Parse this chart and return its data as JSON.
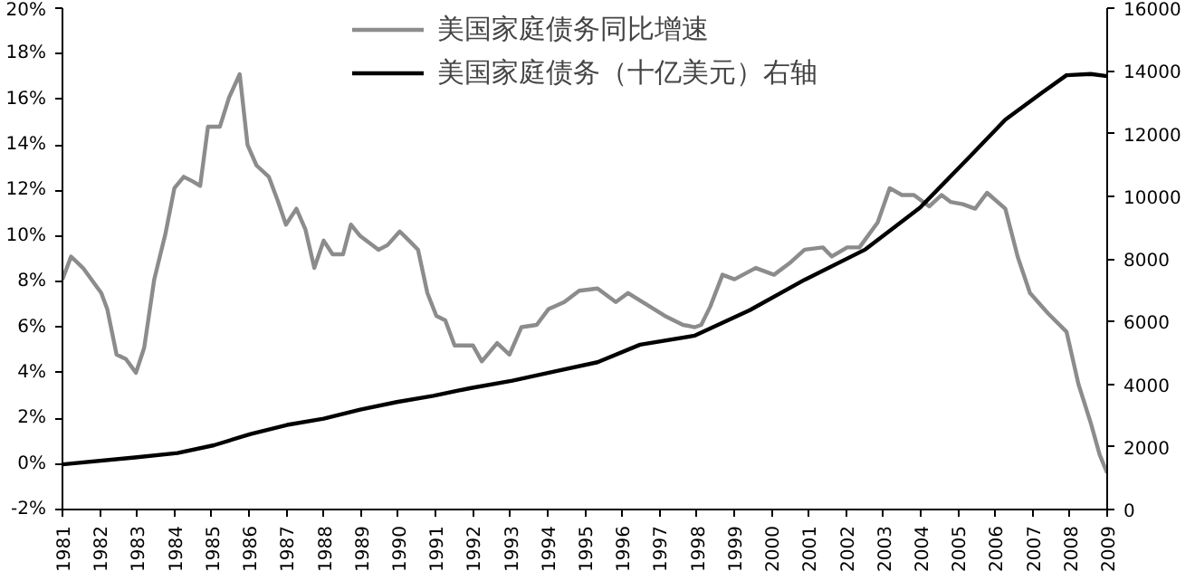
{
  "chart_data": {
    "type": "line",
    "series": [
      {
        "name": "美国家庭债务同比增速",
        "color": "#8c8c8c",
        "x": [
          1981.0,
          1981.23,
          1981.55,
          1982.04,
          1982.2,
          1982.45,
          1982.7,
          1982.97,
          1983.19,
          1983.46,
          1983.76,
          1984.0,
          1984.25,
          1984.49,
          1984.69,
          1984.9,
          1985.22,
          1985.47,
          1985.75,
          1985.96,
          1986.2,
          1986.53,
          1986.78,
          1986.99,
          1987.27,
          1987.51,
          1987.75,
          1988.0,
          1988.24,
          1988.52,
          1988.73,
          1988.98,
          1989.47,
          1989.71,
          1990.04,
          1990.29,
          1990.53,
          1990.78,
          1991.02,
          1991.26,
          1991.51,
          1992.0,
          1992.24,
          1992.65,
          1992.98,
          1993.3,
          1993.71,
          1994.03,
          1994.45,
          1994.85,
          1995.34,
          1995.83,
          1996.16,
          1996.65,
          1997.14,
          1997.63,
          1997.95,
          1998.12,
          1998.36,
          1998.69,
          1999.01,
          1999.58,
          2000.07,
          2000.48,
          2000.89,
          2001.38,
          2001.62,
          2002.03,
          2002.36,
          2002.85,
          2003.17,
          2003.5,
          2003.82,
          2004.23,
          2004.56,
          2004.8,
          2005.13,
          2005.46,
          2005.78,
          2006.27,
          2006.6,
          2006.93,
          2007.42,
          2007.91,
          2008.23,
          2008.56,
          2008.8,
          2009.0
        ],
        "values": [
          8.1,
          9.1,
          8.6,
          7.5,
          6.8,
          4.8,
          4.6,
          4.0,
          5.1,
          8.1,
          10.1,
          12.1,
          12.6,
          12.4,
          12.2,
          14.8,
          14.8,
          16.1,
          17.1,
          14.0,
          13.1,
          12.6,
          11.5,
          10.5,
          11.2,
          10.3,
          8.6,
          9.8,
          9.2,
          9.2,
          10.5,
          10.0,
          9.4,
          9.6,
          10.2,
          9.8,
          9.4,
          7.5,
          6.5,
          6.3,
          5.2,
          5.2,
          4.5,
          5.3,
          4.8,
          6.0,
          6.1,
          6.8,
          7.1,
          7.6,
          7.7,
          7.1,
          7.5,
          7.0,
          6.5,
          6.1,
          6.0,
          6.1,
          6.9,
          8.3,
          8.1,
          8.6,
          8.3,
          8.8,
          9.4,
          9.5,
          9.1,
          9.5,
          9.5,
          10.6,
          12.1,
          11.8,
          11.8,
          11.3,
          11.8,
          11.5,
          11.4,
          11.2,
          11.9,
          11.2,
          9.1,
          7.5,
          6.6,
          5.8,
          3.5,
          1.8,
          0.4,
          -0.4
        ]
      },
      {
        "name": "美国家庭债务（十亿美元）右轴",
        "color": "#000000",
        "axis": "y2",
        "x": [
          1981.0,
          1982.94,
          1984.08,
          1985.06,
          1986.04,
          1987.02,
          1988.0,
          1988.98,
          1989.96,
          1990.94,
          1991.92,
          1993.06,
          1994.2,
          1995.34,
          1996.48,
          1997.95,
          1999.42,
          2000.89,
          2002.52,
          2003.99,
          2005.29,
          2006.27,
          2007.25,
          2007.91,
          2008.56,
          2009.0
        ],
        "values": [
          1440,
          1660,
          1800,
          2050,
          2410,
          2700,
          2900,
          3190,
          3430,
          3630,
          3870,
          4110,
          4410,
          4700,
          5260,
          5550,
          6360,
          7330,
          8300,
          9640,
          11230,
          12440,
          13300,
          13860,
          13900,
          13830
        ]
      }
    ],
    "xlim": [
      1981,
      2009
    ],
    "xticks": [
      1981,
      1982,
      1983,
      1984,
      1985,
      1986,
      1987,
      1988,
      1989,
      1990,
      1991,
      1992,
      1993,
      1994,
      1995,
      1996,
      1997,
      1998,
      1999,
      2000,
      2001,
      2002,
      2003,
      2004,
      2005,
      2006,
      2007,
      2008,
      2009
    ],
    "ylim": [
      -2,
      20
    ],
    "yticks": [
      {
        "value": -2,
        "label": "-2%"
      },
      {
        "value": 0,
        "label": "0%"
      },
      {
        "value": 2,
        "label": "2%"
      },
      {
        "value": 4,
        "label": "4%"
      },
      {
        "value": 6,
        "label": "6%"
      },
      {
        "value": 8,
        "label": "8%"
      },
      {
        "value": 10,
        "label": "10%"
      },
      {
        "value": 12,
        "label": "12%"
      },
      {
        "value": 14,
        "label": "14%"
      },
      {
        "value": 16,
        "label": "16%"
      },
      {
        "value": 18,
        "label": "18%"
      },
      {
        "value": 20,
        "label": "20%"
      }
    ],
    "y2lim": [
      0,
      16000
    ],
    "y2ticks": [
      0,
      2000,
      4000,
      6000,
      8000,
      10000,
      12000,
      14000,
      16000
    ],
    "legend": "top",
    "grid": false,
    "line_style": "solid",
    "marker": "none"
  }
}
